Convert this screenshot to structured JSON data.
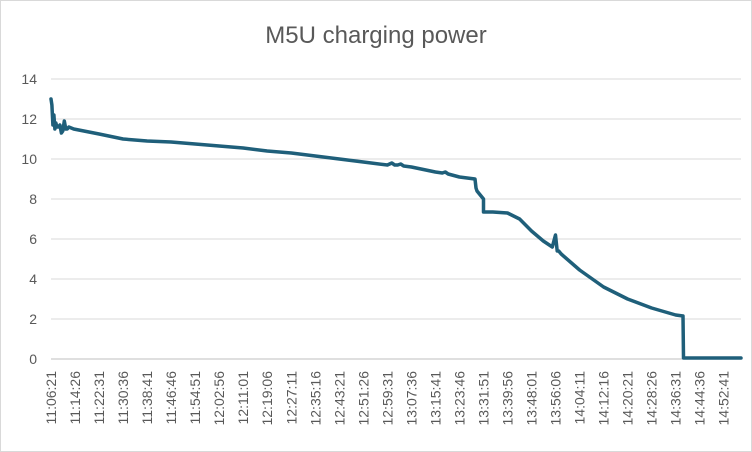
{
  "chart_data": {
    "type": "line",
    "title": "M5U charging power",
    "xlabel": "",
    "ylabel": "",
    "ylim": [
      0,
      14
    ],
    "y_ticks": [
      "0",
      "2",
      "4",
      "6",
      "8",
      "10",
      "12",
      "14"
    ],
    "x_tick_labels": [
      "11:06:21",
      "11:14:26",
      "11:22:31",
      "11:30:36",
      "11:38:41",
      "11:46:46",
      "11:54:51",
      "12:02:56",
      "12:11:01",
      "12:19:06",
      "12:27:11",
      "12:35:16",
      "12:43:21",
      "12:51:26",
      "12:59:31",
      "13:07:36",
      "13:15:41",
      "13:23:46",
      "13:31:51",
      "13:39:56",
      "13:48:01",
      "13:56:06",
      "14:04:11",
      "14:12:16",
      "14:20:21",
      "14:28:26",
      "14:36:31",
      "14:44:36",
      "14:52:41"
    ],
    "x_range": [
      "11:06:21",
      "14:58:30"
    ],
    "grid": "horizontal",
    "legend": "none",
    "series_color": "#1f5f7a",
    "series": [
      {
        "x": [
          "11:06:21",
          "11:06:40",
          "11:07:00",
          "11:07:20",
          "11:07:40",
          "11:08:00",
          "11:08:20",
          "11:08:50",
          "11:09:20",
          "11:09:50",
          "11:10:20",
          "11:10:50",
          "11:11:20",
          "11:11:50",
          "11:12:20",
          "11:14:00",
          "11:22:31",
          "11:30:36",
          "11:38:41",
          "11:46:46",
          "11:54:51",
          "12:02:56",
          "12:11:01",
          "12:19:06",
          "12:27:11",
          "12:35:16",
          "12:43:21",
          "12:51:26",
          "12:59:31",
          "13:01:00",
          "13:02:00",
          "13:03:00",
          "13:04:00",
          "13:05:00",
          "13:07:36",
          "13:15:41",
          "13:18:00",
          "13:19:00",
          "13:20:00",
          "13:23:46",
          "13:29:00",
          "13:29:20",
          "13:29:40",
          "13:31:51",
          "13:31:52",
          "13:35:00",
          "13:39:56",
          "13:44:00",
          "13:48:01",
          "13:52:00",
          "13:55:00",
          "13:56:06",
          "13:56:40",
          "13:57:10",
          "13:58:00",
          "14:04:11",
          "14:12:16",
          "14:20:21",
          "14:28:26",
          "14:36:31",
          "14:39:00",
          "14:39:10",
          "14:44:36",
          "14:52:41",
          "14:58:30"
        ],
        "y": [
          13.0,
          12.7,
          11.7,
          12.2,
          11.5,
          11.8,
          11.6,
          11.6,
          11.7,
          11.3,
          11.4,
          11.9,
          11.5,
          11.5,
          11.6,
          11.5,
          11.25,
          11.0,
          10.9,
          10.85,
          10.75,
          10.65,
          10.55,
          10.4,
          10.3,
          10.15,
          10.0,
          9.85,
          9.7,
          9.8,
          9.7,
          9.7,
          9.75,
          9.65,
          9.6,
          9.35,
          9.3,
          9.35,
          9.25,
          9.1,
          9.0,
          8.55,
          8.4,
          8.0,
          7.35,
          7.35,
          7.3,
          7.0,
          6.4,
          5.9,
          5.6,
          6.2,
          5.4,
          5.4,
          5.25,
          4.45,
          3.6,
          3.0,
          2.55,
          2.2,
          2.15,
          0.05,
          0.05,
          0.05,
          0.05
        ]
      }
    ]
  }
}
